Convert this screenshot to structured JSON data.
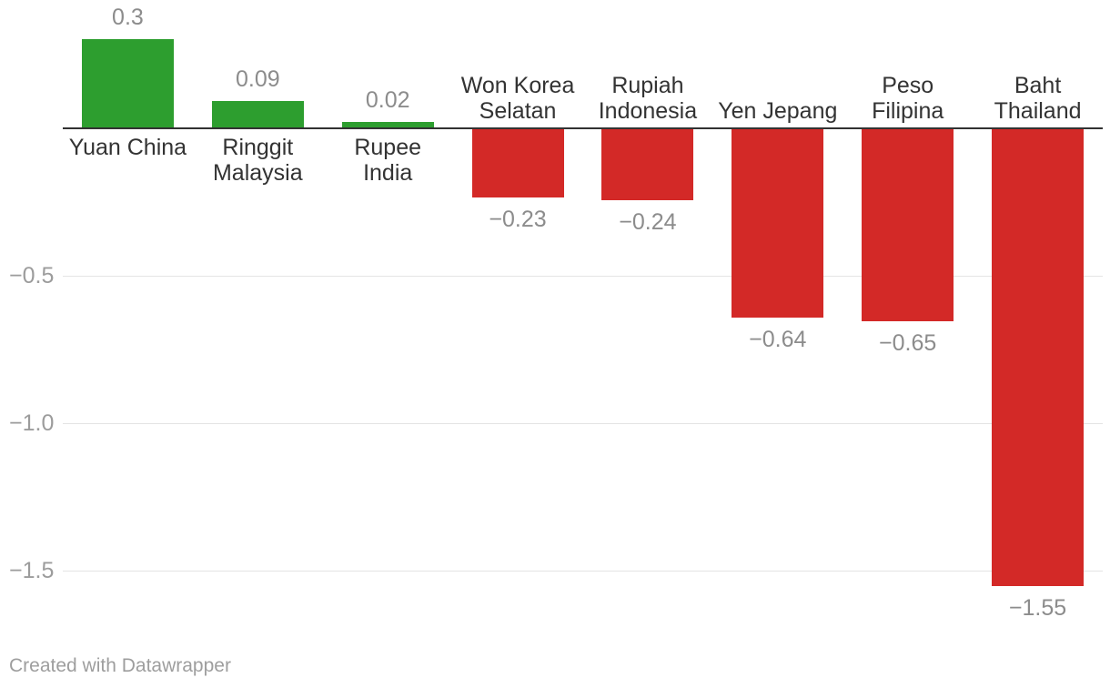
{
  "chart_data": {
    "type": "bar",
    "title": "",
    "xlabel": "",
    "ylabel": "",
    "categories": [
      "Yuan China",
      "Ringgit Malaysia",
      "Rupee India",
      "Won Korea Selatan",
      "Rupiah Indonesia",
      "Yen Jepang",
      "Peso Filipina",
      "Baht Thailand"
    ],
    "category_lines": [
      [
        "Yuan China"
      ],
      [
        "Ringgit",
        "Malaysia"
      ],
      [
        "Rupee",
        "India"
      ],
      [
        "Won Korea",
        "Selatan"
      ],
      [
        "Rupiah",
        "Indonesia"
      ],
      [
        "Yen Jepang"
      ],
      [
        "Peso",
        "Filipina"
      ],
      [
        "Baht",
        "Thailand"
      ]
    ],
    "values": [
      0.3,
      0.09,
      0.02,
      -0.23,
      -0.24,
      -0.64,
      -0.65,
      -1.55
    ],
    "value_labels": [
      "0.3",
      "0.09",
      "0.02",
      "−0.23",
      "−0.24",
      "−0.64",
      "−0.65",
      "−1.55"
    ],
    "gridlines": [
      {
        "value": -0.5,
        "label": "−0.5"
      },
      {
        "value": -1.0,
        "label": "−1.0"
      },
      {
        "value": -1.5,
        "label": "−1.5"
      }
    ],
    "ylim": [
      -1.7,
      0.35
    ],
    "baseline_value": 0,
    "grid": true,
    "legend_position": "none",
    "colors": {
      "positive_bar": "#2d9e2f",
      "negative_bar": "#d32927",
      "baseline": "#323232",
      "gridline": "#e4e4e4",
      "category_label": "#333333",
      "value_label": "#8c8c8c",
      "tick_label": "#9c9c9c"
    }
  },
  "footer": {
    "credit": "Created with Datawrapper"
  }
}
